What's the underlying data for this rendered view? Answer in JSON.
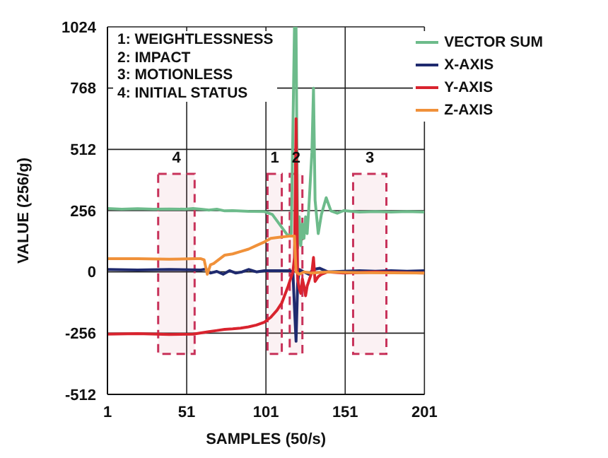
{
  "chart_data": {
    "type": "line",
    "xlabel": "SAMPLES (50/s)",
    "ylabel": "VALUE (256/g)",
    "annotations": [
      "1: WEIGHTLESSNESS",
      "2: IMPACT",
      "3: MOTIONLESS",
      "4: INITIAL STATUS"
    ],
    "xlim": [
      1,
      201
    ],
    "xticks": [
      1,
      51,
      101,
      151,
      201
    ],
    "ylim": [
      -512,
      1024
    ],
    "yticks": [
      -512,
      -256,
      0,
      256,
      512,
      768,
      1024
    ],
    "grid": true,
    "legend": "top right",
    "marker": "none",
    "line_style": "solid",
    "bands": [
      {
        "axis": "x",
        "from": 33,
        "to": 56,
        "label": "4",
        "color": "#c8325a"
      },
      {
        "axis": "x",
        "from": 102,
        "to": 111,
        "label": "1",
        "color": "#c8325a"
      },
      {
        "axis": "x",
        "from": 116,
        "to": 124,
        "label": "2",
        "color": "#c8325a"
      },
      {
        "axis": "x",
        "from": 156,
        "to": 177,
        "label": "3",
        "color": "#c8325a"
      }
    ],
    "series": [
      {
        "name": "VECTOR SUM",
        "color": "#6dbb8b",
        "x": [
          1,
          10,
          20,
          30,
          40,
          50,
          55,
          60,
          65,
          70,
          75,
          80,
          90,
          100,
          105,
          110,
          115,
          117,
          119,
          120,
          121,
          122,
          123,
          124,
          125,
          126,
          127,
          128,
          130,
          131,
          132,
          134,
          136,
          139,
          142,
          146,
          150,
          160,
          170,
          180,
          190,
          201
        ],
        "values": [
          265,
          262,
          264,
          262,
          263,
          262,
          265,
          262,
          258,
          262,
          255,
          256,
          253,
          252,
          240,
          195,
          150,
          160,
          1024,
          1024,
          100,
          230,
          110,
          200,
          140,
          230,
          160,
          260,
          500,
          768,
          300,
          160,
          240,
          310,
          255,
          245,
          256,
          250,
          252,
          250,
          252,
          250
        ]
      },
      {
        "name": "X-AXIS",
        "color": "#1f2a6e",
        "x": [
          1,
          20,
          40,
          60,
          63,
          66,
          70,
          74,
          78,
          82,
          86,
          90,
          95,
          100,
          110,
          116,
          118,
          119,
          120,
          121,
          122,
          125,
          128,
          131,
          135,
          140,
          150,
          160,
          170,
          180,
          190,
          201
        ],
        "values": [
          10,
          8,
          10,
          8,
          12,
          -5,
          2,
          -10,
          5,
          -5,
          0,
          10,
          0,
          5,
          5,
          5,
          0,
          -150,
          -290,
          -50,
          10,
          0,
          -10,
          10,
          15,
          0,
          3,
          5,
          3,
          5,
          3,
          5
        ]
      },
      {
        "name": "Y-AXIS",
        "color": "#d9232e",
        "x": [
          1,
          20,
          40,
          55,
          60,
          65,
          70,
          75,
          80,
          85,
          90,
          95,
          100,
          104,
          108,
          111,
          113,
          115,
          117,
          118,
          119,
          120,
          121,
          122,
          123,
          124,
          125,
          126,
          127,
          128,
          130,
          131,
          132,
          134,
          136,
          140,
          150,
          170,
          201
        ],
        "values": [
          -260,
          -258,
          -262,
          -260,
          -255,
          -250,
          -245,
          -240,
          -238,
          -235,
          -230,
          -222,
          -210,
          -190,
          -160,
          -130,
          -95,
          -60,
          -20,
          0,
          60,
          640,
          -30,
          -70,
          -90,
          -30,
          -60,
          -100,
          -60,
          -40,
          0,
          60,
          -40,
          -20,
          -10,
          0,
          -5,
          0,
          -5
        ]
      },
      {
        "name": "Z-AXIS",
        "color": "#f0913a",
        "x": [
          1,
          20,
          40,
          55,
          60,
          62,
          63,
          64,
          66,
          68,
          70,
          75,
          80,
          85,
          90,
          95,
          100,
          104,
          110,
          117,
          119,
          120,
          122,
          125,
          130,
          140,
          160,
          201
        ],
        "values": [
          55,
          55,
          53,
          55,
          55,
          50,
          20,
          -10,
          30,
          35,
          45,
          70,
          75,
          85,
          95,
          110,
          125,
          140,
          145,
          150,
          150,
          0,
          -10,
          0,
          -5,
          0,
          -3,
          -5
        ]
      }
    ]
  }
}
